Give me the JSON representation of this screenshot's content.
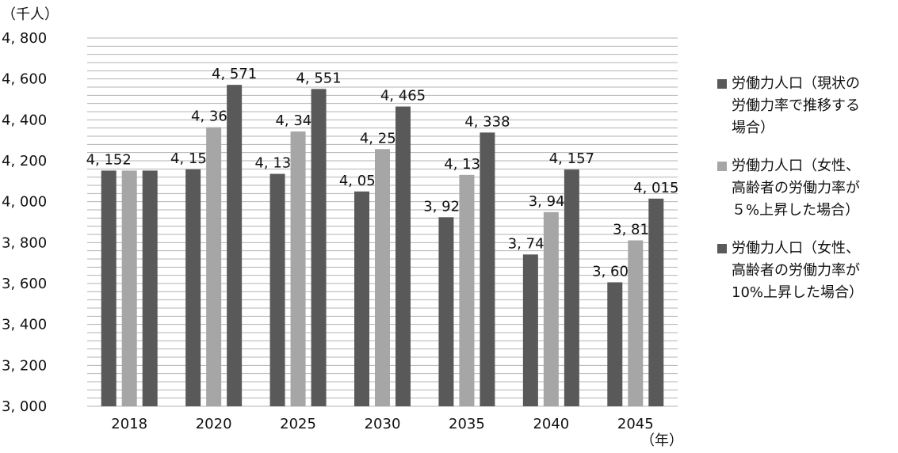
{
  "chart_data": {
    "type": "bar",
    "unit_label": "（千人）",
    "xunit_label": "（年）",
    "categories": [
      "2018",
      "2020",
      "2025",
      "2030",
      "2035",
      "2040",
      "2045"
    ],
    "ylim": [
      3000,
      4800
    ],
    "yticks": [
      "3, 000",
      "3, 200",
      "3, 400",
      "3, 600",
      "3, 800",
      "4, 000",
      "4, 200",
      "4, 400",
      "4, 600",
      "4, 800"
    ],
    "grid": true,
    "legend_position": "right",
    "series": [
      {
        "name": "労働力人口（現状の\n労働力率で推移する\n場合）",
        "color": "#595959",
        "values": [
          4152,
          4158,
          4136,
          4050,
          3924,
          3742,
          3606
        ],
        "labels": [
          "4, 152",
          "4, 158",
          "4, 136",
          "4, 050",
          "3, 924",
          "3, 742",
          "3, 606"
        ]
      },
      {
        "name": "労働力人口（女性、\n高齢者の労働力率が\n５%上昇した場合）",
        "color": "#a6a6a6",
        "values": [
          4152,
          4364,
          4343,
          4257,
          4131,
          3949,
          3811
        ],
        "labels": [
          "",
          "4, 364",
          "4, 343",
          "4, 257",
          "4, 131",
          "3, 949",
          "3, 811"
        ]
      },
      {
        "name": "労働力人口（女性、\n高齢者の労働力率が\n10%上昇した場合）",
        "color": "#595959",
        "values": [
          4152,
          4571,
          4551,
          4465,
          4338,
          4157,
          4015
        ],
        "labels": [
          "",
          "4, 571",
          "4, 551",
          "4, 465",
          "4, 338",
          "4, 157",
          "4, 015"
        ]
      }
    ]
  }
}
